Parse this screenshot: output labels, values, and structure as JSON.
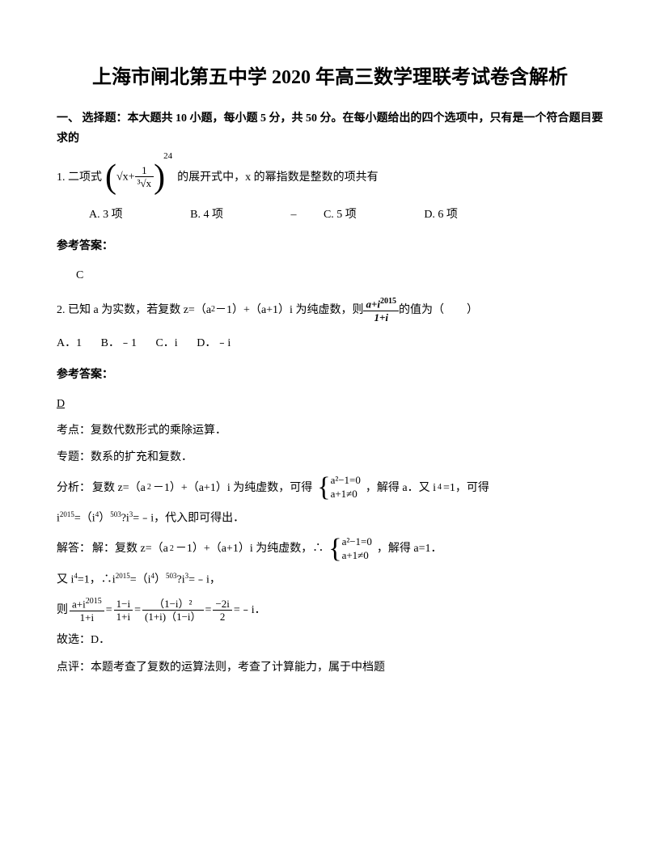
{
  "title": "上海市闸北第五中学 2020 年高三数学理联考试卷含解析",
  "section1": "一、 选择题：本大题共 10 小题，每小题 5 分，共 50 分。在每小题给出的四个选项中，只有是一个符合题目要求的",
  "q1": {
    "prefix": "1. 二项式",
    "exp_power": "24",
    "inner_left": "√x",
    "inner_plus": "+",
    "inner_frac_num": "1",
    "inner_frac_den": "³√x",
    "suffix": " 的展开式中，x 的幂指数是整数的项共有",
    "optA": "A. 3 项",
    "optB": "B. 4 项",
    "optC": "C. 5 项",
    "optD": "D. 6 项",
    "dash": "–"
  },
  "ans_label": "参考答案：",
  "q1_ans": "C",
  "q2": {
    "prefix": "2. 已知 a 为实数，若复数 z=（a",
    "sq": "2",
    "mid1": "－1）+（a+1）i 为纯虚数，则 ",
    "frac_num": "a+i",
    "frac_num_sup": "2015",
    "frac_den": "1+i",
    "tail": " 的值为（　　）",
    "optA": "A．1",
    "optB": "B．﹣1",
    "optC": "C．i",
    "optD": "D．﹣i"
  },
  "q2_ans": "D",
  "kd_label": "考点：",
  "kd_text": "复数代数形式的乘除运算．",
  "zt_label": "专题：",
  "zt_text": "数系的扩充和复数．",
  "fx_label": "分析：",
  "fx_text1": "复数 z=（a",
  "fx_text1b": "－1）+（a+1）i 为纯虚数，可得",
  "sys_r1": "a²−1=0",
  "sys_r2": "a+1≠0",
  "fx_text2": "，解得 a．又 i",
  "fx_i4": "4",
  "fx_text3": "=1，可得",
  "fx_line2a": "i",
  "fx_2015": "2015",
  "fx_line2b": "=（i",
  "fx_line2c": "）",
  "fx_503": "503",
  "fx_line2d": "?i",
  "fx_3": "3",
  "fx_line2e": "=﹣i，代入即可得出．",
  "jd_label": "解答：",
  "jd_text1": " 解：复数 z=（a",
  "jd_text1b": "－1）+（a+1）i 为纯虚数，∴",
  "jd_text2": "，解得 a=1．",
  "jd_line2a": "又 i",
  "jd_line2b": "=1，∴i",
  "jd_line2c": "=（i",
  "jd_line2d": "）",
  "jd_line2e": "?i",
  "jd_line2f": "=﹣i，",
  "ze_label": "则 ",
  "eq_f1_num": "a+i",
  "eq_f1_den": "1+i",
  "eq_eq": "=",
  "eq_f2_num": "1−i",
  "eq_f2_den": "1+i",
  "eq_f3_num": "（1−i）²",
  "eq_f3_den": "(1+i)（1−i）",
  "eq_f4_num": "−2i",
  "eq_f4_den": "2",
  "eq_tail": "=﹣i．",
  "gx": "故选：D．",
  "dp_label": "点评：",
  "dp_text": "本题考查了复数的运算法则，考查了计算能力，属于中档题"
}
